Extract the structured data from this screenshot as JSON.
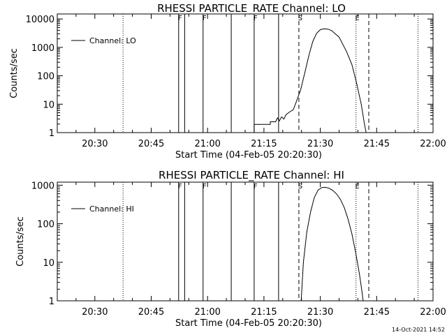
{
  "footer": {
    "timestamp": "14-Oct-2021 14:52"
  },
  "chart_data": [
    {
      "type": "line",
      "title": "RHESSI PARTICLE_RATE Channel: LO",
      "xlabel": "Start Time (04-Feb-05 20:20:30)",
      "ylabel": "Counts/sec",
      "yscale": "log",
      "xlim": [
        "20:20",
        "22:00"
      ],
      "ylim": [
        1,
        15000
      ],
      "xticks": [
        "20:30",
        "20:45",
        "21:00",
        "21:15",
        "21:30",
        "21:45",
        "22:00"
      ],
      "yticks": [
        "1",
        "10",
        "100",
        "1000",
        "10000"
      ],
      "legend": {
        "label": "Channel: LO",
        "placement": "top-left"
      },
      "series": [
        {
          "name": "Channel: LO",
          "segments": [
            [
              [
                "21:12.4",
                1
              ],
              [
                "21:12.4",
                1.95
              ],
              [
                "21:16.7",
                1.95
              ],
              [
                "21:16.7",
                2.4
              ],
              [
                "21:18.1",
                2.4
              ],
              [
                "21:18.6",
                3.3
              ],
              [
                "21:19.1",
                2.6
              ],
              [
                "21:19.7",
                3.6
              ],
              [
                "21:20.3",
                3.0
              ],
              [
                "21:20.9",
                4.3
              ],
              [
                "21:21.8",
                5.3
              ],
              [
                "21:22.8",
                6.4
              ],
              [
                "21:23.5",
                11
              ],
              [
                "21:24.8",
                33
              ],
              [
                "21:26.0",
                150
              ],
              [
                "21:27.0",
                550
              ],
              [
                "21:28.0",
                1600
              ],
              [
                "21:29.0",
                3100
              ],
              [
                "21:30.0",
                4200
              ],
              [
                "21:31.0",
                4500
              ],
              [
                "21:32.0",
                4400
              ],
              [
                "21:33.0",
                3900
              ],
              [
                "21:35.0",
                2300
              ],
              [
                "21:37.0",
                700
              ],
              [
                "21:38.4",
                250
              ],
              [
                "21:39.6",
                60
              ],
              [
                "21:40.9",
                10
              ],
              [
                "21:41.7",
                2.2
              ],
              [
                "21:42.2",
                1
              ]
            ]
          ]
        }
      ],
      "vlines": [
        {
          "x": "20:37.5",
          "style": "dotted"
        },
        {
          "x": "20:52.3",
          "style": "solid",
          "label": "F"
        },
        {
          "x": "20:53.9",
          "style": "solid"
        },
        {
          "x": "20:58.8",
          "style": "solid",
          "label": "F"
        },
        {
          "x": "21:06.3",
          "style": "solid"
        },
        {
          "x": "21:12.4",
          "style": "solid",
          "label": "F"
        },
        {
          "x": "21:18.9",
          "style": "solid"
        },
        {
          "x": "21:24.3",
          "style": "dashed",
          "label": "S"
        },
        {
          "x": "21:39.5",
          "style": "dotted",
          "label": "E"
        },
        {
          "x": "21:42.9",
          "style": "dashed"
        },
        {
          "x": "21:56.0",
          "style": "dotted"
        }
      ]
    },
    {
      "type": "line",
      "title": "RHESSI PARTICLE_RATE Channel: HI",
      "xlabel": "Start Time (04-Feb-05 20:20:30)",
      "ylabel": "Counts/sec",
      "yscale": "log",
      "xlim": [
        "20:20",
        "22:00"
      ],
      "ylim": [
        1,
        1200
      ],
      "xticks": [
        "20:30",
        "20:45",
        "21:00",
        "21:15",
        "21:30",
        "21:45",
        "22:00"
      ],
      "yticks": [
        "1",
        "10",
        "100",
        "1000"
      ],
      "legend": {
        "label": "Channel: HI",
        "placement": "top-left"
      },
      "series": [
        {
          "name": "Channel: HI",
          "segments": [
            [
              [
                "21:24.9",
                1
              ],
              [
                "21:25.5",
                10
              ],
              [
                "21:26.4",
                60
              ],
              [
                "21:27.4",
                200
              ],
              [
                "21:28.4",
                480
              ],
              [
                "21:29.4",
                750
              ],
              [
                "21:30.4",
                870
              ],
              [
                "21:31.4",
                880
              ],
              [
                "21:32.4",
                830
              ],
              [
                "21:33.4",
                720
              ],
              [
                "21:34.4",
                580
              ],
              [
                "21:35.4",
                420
              ],
              [
                "21:36.4",
                260
              ],
              [
                "21:37.4",
                130
              ],
              [
                "21:38.4",
                55
              ],
              [
                "21:39.4",
                18
              ],
              [
                "21:40.4",
                5
              ],
              [
                "21:41.0",
                2
              ],
              [
                "21:41.4",
                1
              ]
            ]
          ]
        }
      ],
      "vlines": [
        {
          "x": "20:37.5",
          "style": "dotted"
        },
        {
          "x": "20:52.3",
          "style": "solid",
          "label": "F"
        },
        {
          "x": "20:53.9",
          "style": "solid"
        },
        {
          "x": "20:58.8",
          "style": "solid",
          "label": "F"
        },
        {
          "x": "21:06.3",
          "style": "solid"
        },
        {
          "x": "21:12.4",
          "style": "solid",
          "label": "F"
        },
        {
          "x": "21:18.9",
          "style": "solid"
        },
        {
          "x": "21:24.3",
          "style": "dashed",
          "label": "S"
        },
        {
          "x": "21:39.5",
          "style": "dotted",
          "label": "E"
        },
        {
          "x": "21:42.9",
          "style": "dashed"
        },
        {
          "x": "21:56.0",
          "style": "dotted"
        }
      ]
    }
  ]
}
